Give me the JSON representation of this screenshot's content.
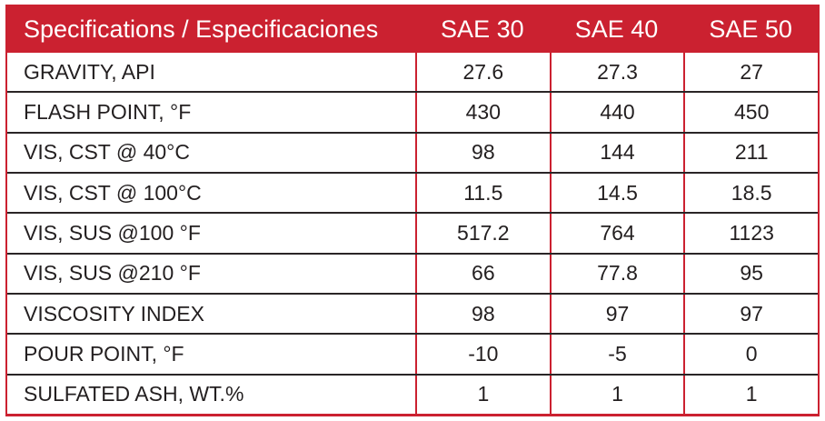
{
  "table": {
    "header": {
      "spec_label": "Specifications / Especificaciones",
      "columns": [
        "SAE 30",
        "SAE 40",
        "SAE 50"
      ]
    },
    "rows": [
      {
        "label": "GRAVITY, API",
        "values": [
          "27.6",
          "27.3",
          "27"
        ]
      },
      {
        "label": "FLASH POINT, °F",
        "values": [
          "430",
          "440",
          "450"
        ]
      },
      {
        "label": "VIS, CST @ 40°C",
        "values": [
          "98",
          "144",
          "211"
        ]
      },
      {
        "label": "VIS, CST @ 100°C",
        "values": [
          "11.5",
          "14.5",
          "18.5"
        ]
      },
      {
        "label": "VIS, SUS @100 °F",
        "values": [
          "517.2",
          "764",
          "1123"
        ]
      },
      {
        "label": "VIS, SUS @210 °F",
        "values": [
          "66",
          "77.8",
          "95"
        ]
      },
      {
        "label": "VISCOSITY INDEX",
        "values": [
          "98",
          "97",
          "97"
        ]
      },
      {
        "label": "POUR POINT, °F",
        "values": [
          "-10",
          "-5",
          "0"
        ]
      },
      {
        "label": "SULFATED ASH, WT.%",
        "values": [
          "1",
          "1",
          "1"
        ]
      }
    ],
    "colors": {
      "accent_red": "#cb2130",
      "text_dark": "#231f20",
      "row_line": "#2a2526",
      "background": "#ffffff",
      "header_text": "#ffffff"
    }
  }
}
